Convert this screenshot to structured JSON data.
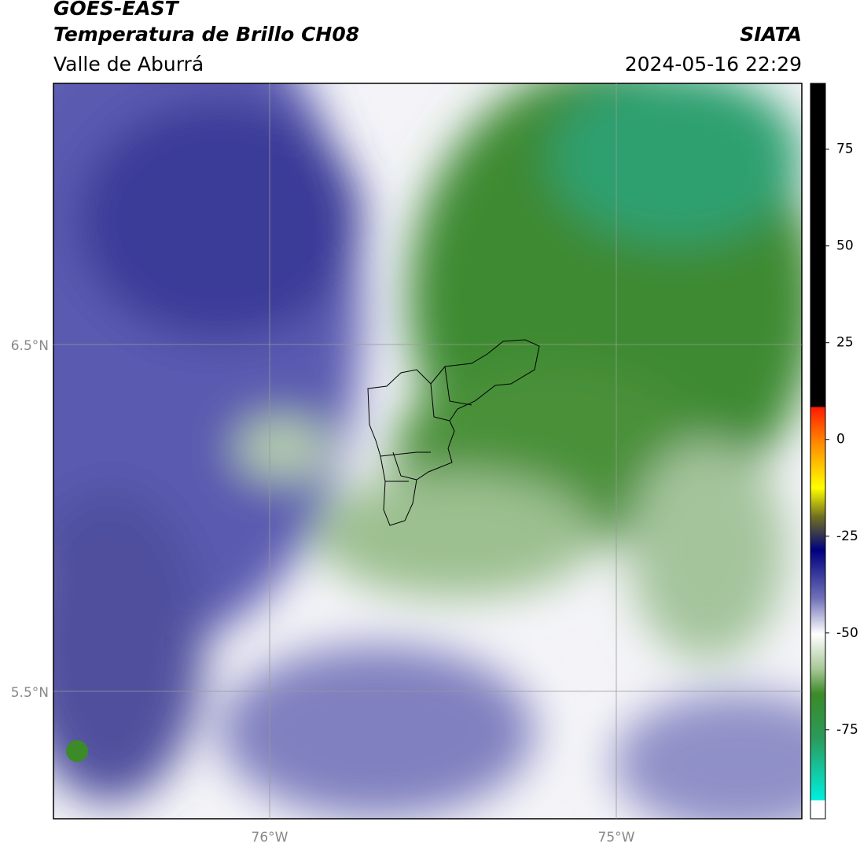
{
  "header": {
    "title": "GOES-EAST",
    "subtitle": "Temperatura de Brillo CH08",
    "region": "Valle de Aburrá",
    "source": "SIATA",
    "datetime": "2024-05-16 22:29"
  },
  "map": {
    "lat_labels": [
      "6.5°N",
      "5.5°N"
    ],
    "lon_labels": [
      "76°W",
      "75°W"
    ]
  },
  "colorbar": {
    "range": [
      -98,
      92
    ],
    "ticks": [
      75,
      50,
      25,
      0,
      -25,
      -50,
      -75
    ]
  }
}
